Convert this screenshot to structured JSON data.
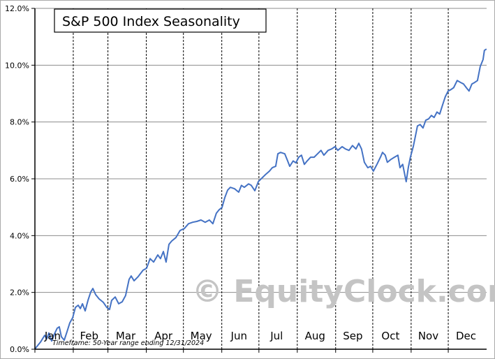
{
  "chart_data": {
    "type": "line",
    "title": "S&P 500 Index Seasonality",
    "xlabel": "",
    "ylabel": "",
    "ylim": [
      0,
      12
    ],
    "xlim": [
      0,
      365
    ],
    "y_ticks": [
      "0.0%",
      "2.0%",
      "4.0%",
      "6.0%",
      "8.0%",
      "10.0%",
      "12.0%"
    ],
    "y_tick_values": [
      0,
      2,
      4,
      6,
      8,
      10,
      12
    ],
    "months": [
      "Jan",
      "Feb",
      "Mar",
      "Apr",
      "May",
      "Jun",
      "Jul",
      "Aug",
      "Sep",
      "Oct",
      "Nov",
      "Dec"
    ],
    "month_starts": [
      0,
      31,
      59,
      90,
      120,
      151,
      181,
      212,
      243,
      273,
      304,
      334
    ],
    "watermark": "© EquityClock.com",
    "footnote": "Timeframe: 50-Year range ending 12/31/2024",
    "grid": "horizontal solid, monthly dashed vertical",
    "line_color": "#4472c4",
    "series": [
      {
        "name": "S&P 500 Index",
        "x": [
          0,
          1.1,
          4.5,
          7.9,
          9.6,
          11.3,
          13.5,
          15.8,
          18.0,
          19.7,
          21.4,
          23.7,
          25.9,
          28.2,
          30.5,
          32.7,
          35.0,
          36.7,
          38.4,
          40.6,
          42.9,
          45.1,
          46.8,
          49.1,
          51.9,
          55.3,
          58.1,
          60.3,
          62.0,
          64.9,
          67.7,
          70.5,
          73.3,
          76.1,
          77.8,
          80.1,
          83.5,
          87.4,
          90.2,
          93.1,
          95.9,
          99.3,
          101.5,
          103.8,
          106.0,
          108.3,
          110.5,
          113.9,
          117.3,
          120.7,
          124.1,
          127.5,
          130.8,
          134.2,
          137.6,
          141.0,
          143.8,
          146.6,
          148.9,
          151.2,
          153.4,
          155.7,
          157.9,
          161.3,
          164.7,
          166.9,
          169.2,
          172.6,
          174.8,
          177.7,
          180.5,
          183.3,
          186.1,
          189.5,
          191.8,
          194.6,
          196.3,
          198.5,
          201.9,
          204.2,
          205.9,
          208.7,
          210.9,
          213.2,
          215.4,
          217.7,
          220.0,
          222.8,
          225.6,
          228.4,
          231.2,
          233.5,
          236.9,
          239.7,
          242.5,
          244.8,
          248.2,
          251.0,
          253.8,
          256.6,
          259.4,
          261.7,
          263.9,
          266.2,
          269.0,
          271.3,
          273.5,
          276.4,
          279.2,
          280.9,
          283.1,
          284.8,
          287.6,
          290.5,
          293.3,
          295.0,
          297.2,
          298.9,
          300.0,
          301.7,
          303.4,
          305.7,
          307.4,
          309.1,
          311.3,
          313.6,
          315.8,
          318.1,
          320.4,
          322.6,
          324.9,
          327.1,
          329.4,
          331.6,
          333.9,
          336.1,
          338.4,
          341.2,
          344.0,
          346.3,
          348.6,
          350.8,
          353.1,
          355.3,
          357.6,
          359.8,
          362.1,
          363.2,
          364.9
        ],
        "values": [
          0,
          0.07,
          0.25,
          0.49,
          0.37,
          0.57,
          0.29,
          0.54,
          0.74,
          0.79,
          0.44,
          0.32,
          0.61,
          0.93,
          1.11,
          1.47,
          1.55,
          1.43,
          1.6,
          1.35,
          1.72,
          2.01,
          2.14,
          1.92,
          1.77,
          1.65,
          1.47,
          1.4,
          1.72,
          1.84,
          1.6,
          1.67,
          1.89,
          2.46,
          2.58,
          2.41,
          2.56,
          2.78,
          2.85,
          3.19,
          3.07,
          3.32,
          3.19,
          3.44,
          3.07,
          3.69,
          3.81,
          3.93,
          4.18,
          4.25,
          4.42,
          4.47,
          4.5,
          4.55,
          4.47,
          4.55,
          4.42,
          4.79,
          4.91,
          4.99,
          5.33,
          5.6,
          5.7,
          5.65,
          5.53,
          5.77,
          5.7,
          5.82,
          5.77,
          5.58,
          5.9,
          6.02,
          6.14,
          6.27,
          6.39,
          6.44,
          6.88,
          6.93,
          6.88,
          6.63,
          6.44,
          6.63,
          6.56,
          6.76,
          6.83,
          6.51,
          6.63,
          6.76,
          6.76,
          6.88,
          7.0,
          6.83,
          7.0,
          7.05,
          7.13,
          7.0,
          7.13,
          7.05,
          7.0,
          7.17,
          7.05,
          7.25,
          7.05,
          6.58,
          6.39,
          6.44,
          6.27,
          6.51,
          6.76,
          6.93,
          6.83,
          6.58,
          6.68,
          6.76,
          6.83,
          6.39,
          6.51,
          6.14,
          5.9,
          6.39,
          6.76,
          7.13,
          7.49,
          7.86,
          7.91,
          7.79,
          8.06,
          8.11,
          8.23,
          8.16,
          8.35,
          8.28,
          8.6,
          8.89,
          9.09,
          9.14,
          9.21,
          9.46,
          9.39,
          9.34,
          9.21,
          9.09,
          9.34,
          9.39,
          9.46,
          9.95,
          10.2,
          10.52,
          10.57
        ]
      }
    ]
  }
}
